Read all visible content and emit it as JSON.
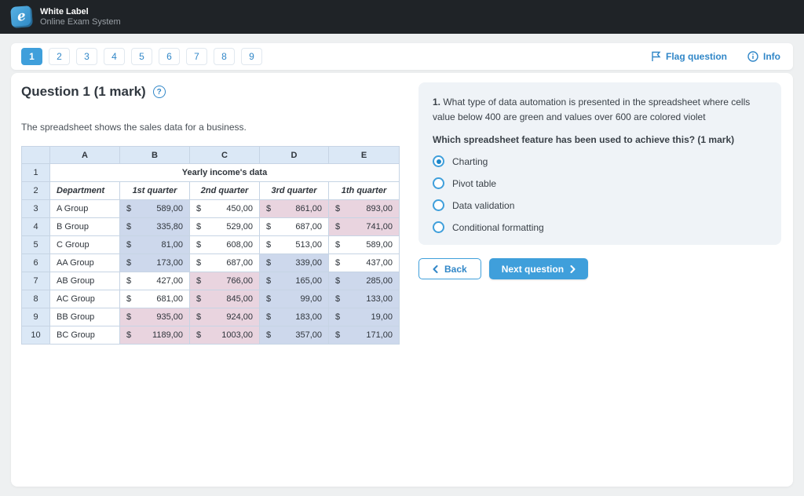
{
  "header": {
    "title": "White Label",
    "subtitle": "Online Exam System",
    "logo_glyph": "e"
  },
  "nav": {
    "tabs": [
      "1",
      "2",
      "3",
      "4",
      "5",
      "6",
      "7",
      "8",
      "9"
    ],
    "active_tab": "1",
    "flag_label": "Flag question",
    "info_label": "Info"
  },
  "question": {
    "title": "Question 1 (1 mark)",
    "description": "The spreadsheet shows the sales data for a business."
  },
  "spreadsheet": {
    "currency": "$",
    "column_headers": [
      "A",
      "B",
      "C",
      "D",
      "E"
    ],
    "title_row": {
      "num": "1",
      "text": "Yearly income's data"
    },
    "field_row": {
      "num": "2",
      "cells": [
        "Department",
        "1st quarter",
        "2nd quarter",
        "3rd quarter",
        "1th quarter"
      ]
    },
    "rows": [
      {
        "num": "3",
        "dept": "A Group",
        "values": [
          {
            "v": "589,00",
            "bg": "blue"
          },
          {
            "v": "450,00",
            "bg": "white"
          },
          {
            "v": "861,00",
            "bg": "pink"
          },
          {
            "v": "893,00",
            "bg": "pink"
          }
        ]
      },
      {
        "num": "4",
        "dept": "B Group",
        "values": [
          {
            "v": "335,80",
            "bg": "blue"
          },
          {
            "v": "529,00",
            "bg": "white"
          },
          {
            "v": "687,00",
            "bg": "white"
          },
          {
            "v": "741,00",
            "bg": "pink"
          }
        ]
      },
      {
        "num": "5",
        "dept": "C Group",
        "values": [
          {
            "v": "81,00",
            "bg": "blue"
          },
          {
            "v": "608,00",
            "bg": "white"
          },
          {
            "v": "513,00",
            "bg": "white"
          },
          {
            "v": "589,00",
            "bg": "white"
          }
        ]
      },
      {
        "num": "6",
        "dept": "AA Group",
        "values": [
          {
            "v": "173,00",
            "bg": "blue"
          },
          {
            "v": "687,00",
            "bg": "white"
          },
          {
            "v": "339,00",
            "bg": "blue"
          },
          {
            "v": "437,00",
            "bg": "white"
          }
        ]
      },
      {
        "num": "7",
        "dept": "AB Group",
        "values": [
          {
            "v": "427,00",
            "bg": "white"
          },
          {
            "v": "766,00",
            "bg": "pink"
          },
          {
            "v": "165,00",
            "bg": "blue"
          },
          {
            "v": "285,00",
            "bg": "blue"
          }
        ]
      },
      {
        "num": "8",
        "dept": "AC Group",
        "values": [
          {
            "v": "681,00",
            "bg": "white"
          },
          {
            "v": "845,00",
            "bg": "pink"
          },
          {
            "v": "99,00",
            "bg": "blue"
          },
          {
            "v": "133,00",
            "bg": "blue"
          }
        ]
      },
      {
        "num": "9",
        "dept": "BB Group",
        "values": [
          {
            "v": "935,00",
            "bg": "pink"
          },
          {
            "v": "924,00",
            "bg": "pink"
          },
          {
            "v": "183,00",
            "bg": "blue"
          },
          {
            "v": "19,00",
            "bg": "blue"
          }
        ]
      },
      {
        "num": "10",
        "dept": "BC Group",
        "values": [
          {
            "v": "1189,00",
            "bg": "pink"
          },
          {
            "v": "1003,00",
            "bg": "pink"
          },
          {
            "v": "357,00",
            "bg": "blue"
          },
          {
            "v": "171,00",
            "bg": "blue"
          }
        ]
      }
    ]
  },
  "panel": {
    "question_number": "1.",
    "question_text": "What type of data automation is presented in the spreadsheet where cells value below 400 are green and values over 600 are colored violet",
    "sub_question": "Which spreadsheet feature has been used to achieve this? (1 mark)",
    "options": [
      {
        "label": "Charting",
        "selected": true
      },
      {
        "label": "Pivot table",
        "selected": false
      },
      {
        "label": "Data validation",
        "selected": false
      },
      {
        "label": "Conditional formatting",
        "selected": false
      }
    ],
    "back_label": "Back",
    "next_label": "Next question"
  },
  "colors": {
    "accent": "#3f9fdb",
    "accent_text": "#3187c8",
    "header_bg": "#1f2327",
    "page_bg": "#eef0f1",
    "panel_bg": "#eff3f7",
    "cell_blue": "#cdd8ec",
    "cell_pink": "#e9d4df",
    "head_blue": "#dbe8f6",
    "grid": "#c6d4e4"
  }
}
